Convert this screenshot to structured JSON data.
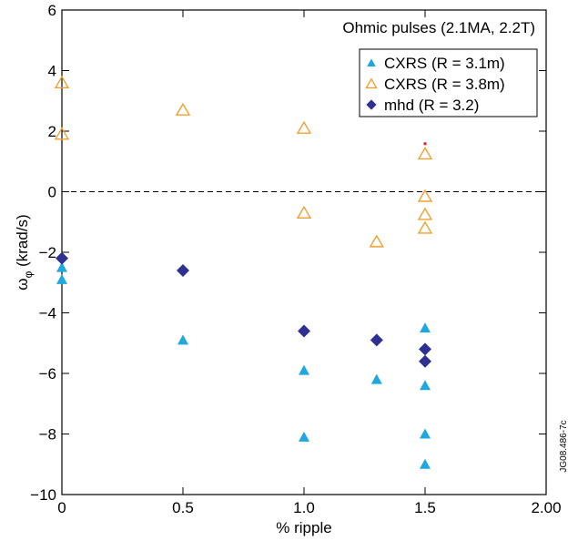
{
  "chart_data": {
    "type": "scatter",
    "annotation": "Ohmic pulses (2.1MA, 2.2T)",
    "xlabel": "% ripple",
    "ylabel_main": "ω",
    "ylabel_sub": "φ",
    "ylabel_tail": " (krad/s)",
    "side_label": "JG08.486-7c",
    "xlim": [
      0,
      2.0
    ],
    "ylim": [
      -10,
      6
    ],
    "x_ticks": [
      {
        "value": 0,
        "label": "0"
      },
      {
        "value": 0.5,
        "label": "0.5"
      },
      {
        "value": 1.0,
        "label": "1.0"
      },
      {
        "value": 1.5,
        "label": "1.5"
      },
      {
        "value": 2.0,
        "label": "2.00"
      }
    ],
    "y_ticks": [
      {
        "value": 6,
        "label": "6"
      },
      {
        "value": 4,
        "label": "4"
      },
      {
        "value": 2,
        "label": "2"
      },
      {
        "value": 0,
        "label": "0"
      },
      {
        "value": -2,
        "label": "−2"
      },
      {
        "value": -4,
        "label": "−4"
      },
      {
        "value": -6,
        "label": "−6"
      },
      {
        "value": -8,
        "label": "−8"
      },
      {
        "value": -10,
        "label": "−10"
      }
    ],
    "reference_line": {
      "y": 0,
      "style": "dashed"
    },
    "legend_position": "top-right",
    "series": [
      {
        "name": "CXRS (R = 3.1m)",
        "marker": "triangle-filled",
        "color": "#1fa8e0",
        "points": [
          [
            0,
            -2.5
          ],
          [
            0,
            -2.9
          ],
          [
            0.5,
            -4.9
          ],
          [
            1.0,
            -5.9
          ],
          [
            1.0,
            -8.1
          ],
          [
            1.3,
            -6.2
          ],
          [
            1.5,
            -4.5
          ],
          [
            1.5,
            -6.4
          ],
          [
            1.5,
            -8.0
          ],
          [
            1.5,
            -9.0
          ]
        ]
      },
      {
        "name": "CXRS (R = 3.8m)",
        "marker": "triangle-open",
        "color": "#f0a030",
        "points": [
          [
            0,
            3.6
          ],
          [
            0,
            1.9
          ],
          [
            0.5,
            2.7
          ],
          [
            1.0,
            2.1
          ],
          [
            1.0,
            -0.7
          ],
          [
            1.3,
            -1.65
          ],
          [
            1.5,
            1.25
          ],
          [
            1.5,
            -0.15
          ],
          [
            1.5,
            -0.75
          ],
          [
            1.5,
            -1.2
          ]
        ]
      },
      {
        "name": "mhd (R = 3.2)",
        "marker": "diamond",
        "color": "#2e3192",
        "points": [
          [
            0,
            -2.2
          ],
          [
            0.5,
            -2.6
          ],
          [
            1.0,
            -4.6
          ],
          [
            1.3,
            -4.9
          ],
          [
            1.5,
            -5.2
          ],
          [
            1.5,
            -5.6
          ]
        ]
      }
    ],
    "extra_marks": [
      {
        "x": 1.5,
        "y": 1.6,
        "color": "#e02020"
      }
    ]
  }
}
